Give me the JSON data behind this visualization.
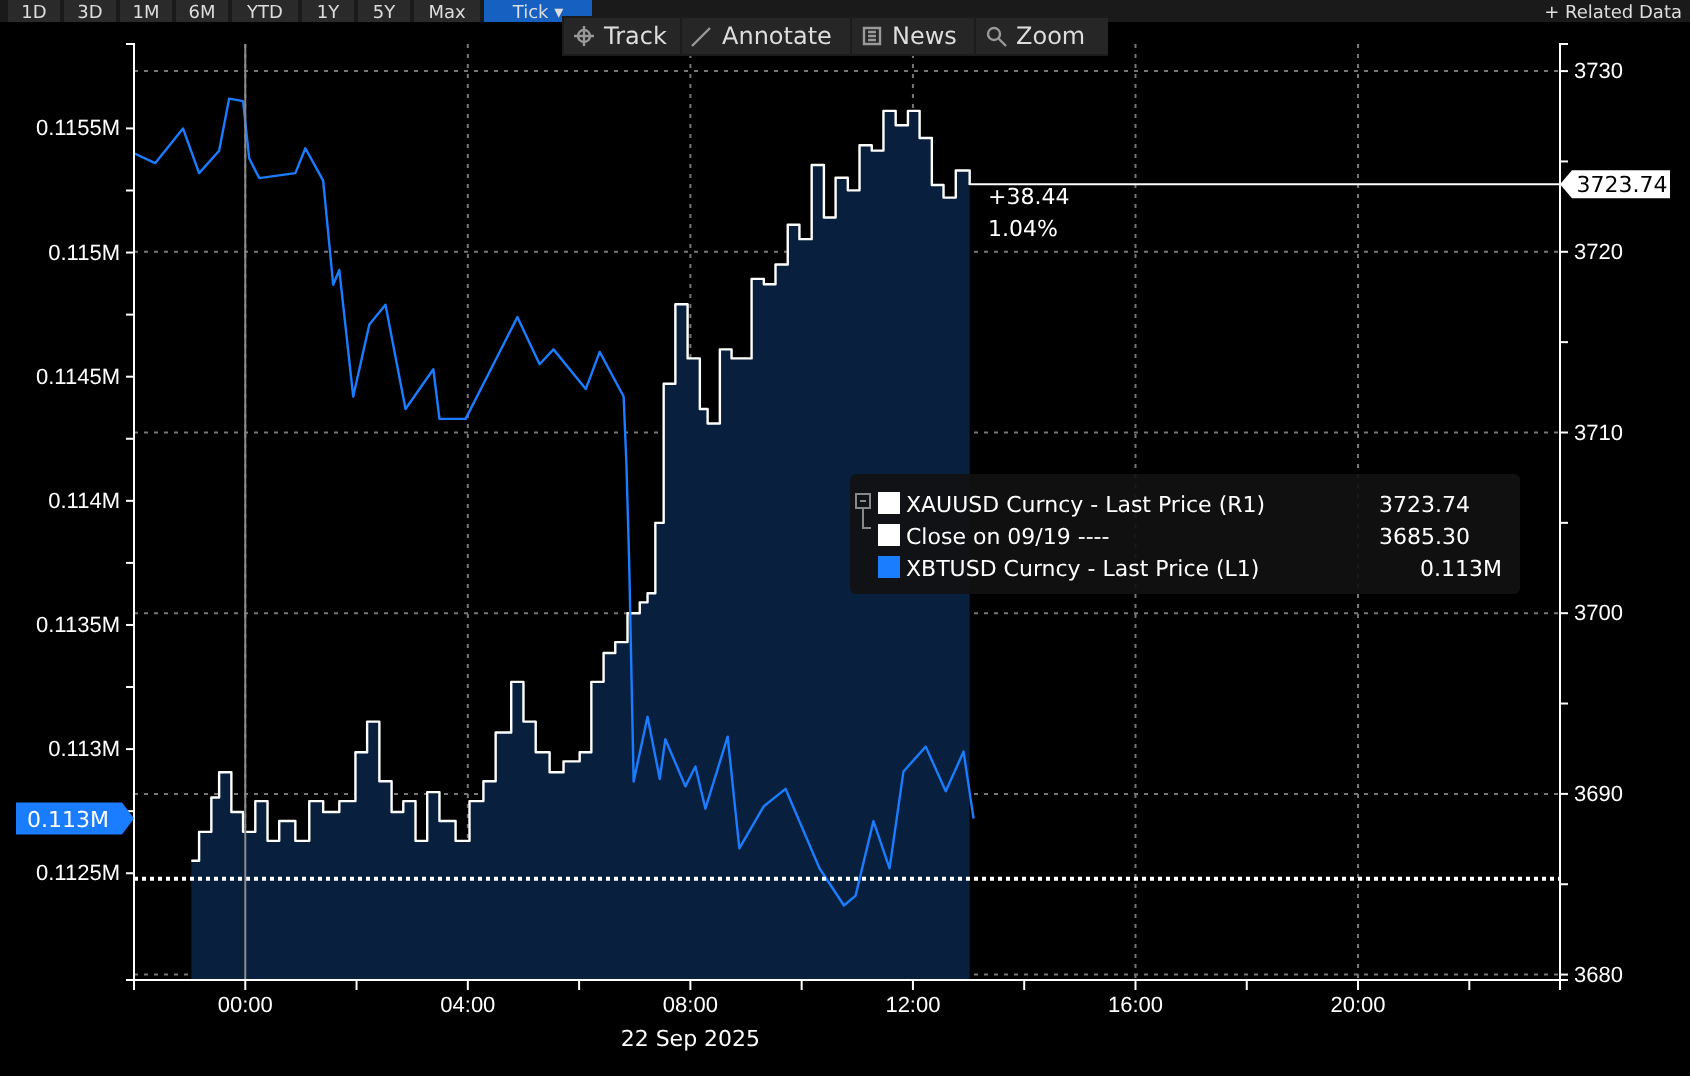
{
  "chart_data": {
    "type": "line",
    "xlabel": "22 Sep 2025",
    "xlim": [
      -2.0,
      23.63
    ],
    "xticks": [
      {
        "value": 0,
        "label": "00:00"
      },
      {
        "value": 2,
        "label": null
      },
      {
        "value": 4,
        "label": "04:00"
      },
      {
        "value": 6,
        "label": null
      },
      {
        "value": 8,
        "label": "08:00"
      },
      {
        "value": 10,
        "label": null
      },
      {
        "value": 12,
        "label": "12:00"
      },
      {
        "value": 14,
        "label": null
      },
      {
        "value": 16,
        "label": "16:00"
      },
      {
        "value": 18,
        "label": null
      },
      {
        "value": 20,
        "label": "20:00"
      },
      {
        "value": 22,
        "label": null
      }
    ],
    "ylim": [
      0.11207,
      0.11584
    ],
    "yticks": [
      {
        "value": 0.1125,
        "label": "0.1125M"
      },
      {
        "value": 0.11275,
        "label": null
      },
      {
        "value": 0.113,
        "label": "0.113M"
      },
      {
        "value": 0.11325,
        "label": null
      },
      {
        "value": 0.1135,
        "label": "0.1135M"
      },
      {
        "value": 0.11375,
        "label": null
      },
      {
        "value": 0.114,
        "label": "0.114M"
      },
      {
        "value": 0.11425,
        "label": null
      },
      {
        "value": 0.1145,
        "label": "0.1145M"
      },
      {
        "value": 0.11475,
        "label": null
      },
      {
        "value": 0.115,
        "label": "0.115M"
      },
      {
        "value": 0.11525,
        "label": null
      },
      {
        "value": 0.1155,
        "label": "0.1155M"
      }
    ],
    "y2lim": [
      3679.7,
      3731.5
    ],
    "y2ticks": [
      3680,
      {
        "value": 3685,
        "label": null
      },
      3690,
      {
        "value": 3695,
        "label": null
      },
      3700,
      {
        "value": 3705,
        "label": null
      },
      3710,
      {
        "value": 3715,
        "label": null
      },
      3720,
      {
        "value": 3725,
        "label": null
      },
      3730
    ],
    "grid": true,
    "legend": "right",
    "series": [
      {
        "type": "area",
        "axis": "y2",
        "color": "#08203d",
        "x": [
          -0.97,
          -0.83,
          -0.61,
          -0.47,
          -0.25,
          -0.04,
          0.18,
          0.4,
          0.61,
          0.9,
          1.15,
          1.4,
          1.69,
          1.98,
          2.19,
          2.41,
          2.63,
          2.84,
          3.06,
          3.27,
          3.49,
          3.78,
          4.03,
          4.28,
          4.5,
          4.78,
          5.0,
          5.22,
          5.47,
          5.72,
          6.01,
          6.22,
          6.44,
          6.65,
          6.87,
          7.09,
          7.23,
          7.37,
          7.52,
          7.73,
          7.95,
          8.17,
          8.31,
          8.53,
          8.74,
          8.96,
          9.1,
          9.32,
          9.53,
          9.75,
          9.96,
          10.18,
          10.4,
          10.61,
          10.83,
          11.04,
          11.26,
          11.47,
          11.69,
          11.91,
          12.12,
          12.34,
          12.55,
          12.77,
          13.02
        ],
        "values": [
          3686.3,
          3687.9,
          3689.8,
          3691.2,
          3689.0,
          3687.9,
          3689.6,
          3687.4,
          3688.5,
          3687.4,
          3689.6,
          3689.0,
          3689.6,
          3692.3,
          3694.0,
          3690.7,
          3689.0,
          3689.6,
          3687.4,
          3690.1,
          3688.5,
          3687.4,
          3689.6,
          3690.7,
          3693.4,
          3696.2,
          3694.0,
          3692.3,
          3691.2,
          3691.8,
          3692.3,
          3696.2,
          3697.8,
          3698.4,
          3700.0,
          3700.6,
          3701.1,
          3705.0,
          3712.7,
          3717.1,
          3714.1,
          3711.3,
          3710.5,
          3714.6,
          3714.1,
          3714.1,
          3718.5,
          3718.2,
          3719.3,
          3721.5,
          3720.7,
          3724.8,
          3721.9,
          3724.1,
          3723.4,
          3725.9,
          3725.6,
          3727.8,
          3727.0,
          3727.8,
          3726.3,
          3723.7,
          3723.0,
          3724.5,
          3723.7
        ]
      },
      {
        "name": "XAUUSD Curncy - Last Price (R1)",
        "type": "step",
        "axis": "y2",
        "color": "#ffffff",
        "x": [
          -0.97,
          -0.83,
          -0.61,
          -0.47,
          -0.25,
          -0.04,
          0.18,
          0.4,
          0.61,
          0.9,
          1.15,
          1.4,
          1.69,
          1.98,
          2.19,
          2.41,
          2.63,
          2.84,
          3.06,
          3.27,
          3.49,
          3.78,
          4.03,
          4.28,
          4.5,
          4.78,
          5.0,
          5.22,
          5.47,
          5.72,
          6.01,
          6.22,
          6.44,
          6.65,
          6.87,
          7.09,
          7.23,
          7.37,
          7.52,
          7.73,
          7.95,
          8.17,
          8.31,
          8.53,
          8.74,
          8.96,
          9.1,
          9.32,
          9.53,
          9.75,
          9.96,
          10.18,
          10.4,
          10.61,
          10.83,
          11.04,
          11.26,
          11.47,
          11.69,
          11.91,
          12.12,
          12.34,
          12.55,
          12.77,
          13.02
        ],
        "values": [
          3686.3,
          3687.9,
          3689.8,
          3691.2,
          3689.0,
          3687.9,
          3689.6,
          3687.4,
          3688.5,
          3687.4,
          3689.6,
          3689.0,
          3689.6,
          3692.3,
          3694.0,
          3690.7,
          3689.0,
          3689.6,
          3687.4,
          3690.1,
          3688.5,
          3687.4,
          3689.6,
          3690.7,
          3693.4,
          3696.2,
          3694.0,
          3692.3,
          3691.2,
          3691.8,
          3692.3,
          3696.2,
          3697.8,
          3698.4,
          3700.0,
          3700.6,
          3701.1,
          3705.0,
          3712.7,
          3717.1,
          3714.1,
          3711.3,
          3710.5,
          3714.6,
          3714.1,
          3714.1,
          3718.5,
          3718.2,
          3719.3,
          3721.5,
          3720.7,
          3724.8,
          3721.9,
          3724.1,
          3723.4,
          3725.9,
          3725.6,
          3727.8,
          3727.0,
          3727.8,
          3726.3,
          3723.7,
          3723.0,
          3724.5,
          3723.7
        ]
      },
      {
        "name": "XBTUSD Curncy - Last Price (L1)",
        "axis": "y",
        "color": "#1a7cff",
        "x": [
          -2.0,
          -1.62,
          -1.12,
          -0.83,
          -0.47,
          -0.29,
          -0.04,
          0.07,
          0.25,
          0.9,
          1.08,
          1.4,
          1.58,
          1.69,
          1.94,
          2.23,
          2.52,
          2.88,
          3.38,
          3.49,
          3.96,
          4.46,
          4.89,
          5.29,
          5.54,
          6.12,
          6.37,
          6.8,
          6.85,
          6.9,
          6.98,
          7.23,
          7.45,
          7.55,
          7.91,
          8.09,
          8.27,
          8.67,
          8.88,
          9.32,
          9.71,
          10.32,
          10.76,
          10.97,
          11.29,
          11.58,
          11.83,
          12.23,
          12.59,
          12.91,
          13.09
        ],
        "values": [
          0.1154,
          0.11536,
          0.1155,
          0.11532,
          0.11541,
          0.11562,
          0.11561,
          0.11538,
          0.1153,
          0.11532,
          0.11542,
          0.11529,
          0.11487,
          0.11493,
          0.11442,
          0.11471,
          0.11479,
          0.11437,
          0.11453,
          0.11433,
          0.11433,
          0.11455,
          0.11474,
          0.11455,
          0.11461,
          0.11445,
          0.1146,
          0.11442,
          0.11415,
          0.11375,
          0.11287,
          0.11313,
          0.11288,
          0.11304,
          0.11285,
          0.11293,
          0.11276,
          0.11305,
          0.1126,
          0.11277,
          0.11284,
          0.11252,
          0.11237,
          0.11241,
          0.11271,
          0.11252,
          0.11291,
          0.11301,
          0.11283,
          0.11299,
          0.11272
        ]
      }
    ],
    "ref_lines": [
      {
        "axis": "y2",
        "value": 3723.74,
        "label": "3723.74",
        "color": "#ffffff",
        "line_style": "solid"
      },
      {
        "axis": "y2",
        "value": 3685.3,
        "label": "Close on 09/19 ----",
        "color": "#ffffff",
        "line_style": "dotted"
      },
      {
        "axis": "x",
        "value": 0,
        "color": "#8a8a8a",
        "line_style": "solid"
      }
    ],
    "annotations": [
      "1D",
      "3D",
      "1M",
      "6M",
      "YTD",
      "1Y",
      "5Y",
      "Max",
      "Tick ▾",
      "+ Related Data",
      "Track",
      "Annotate",
      "News",
      "Zoom",
      "+38.44",
      "1.04%",
      "3723.74",
      "3685.30",
      "0.113M",
      "0.113M"
    ]
  }
}
